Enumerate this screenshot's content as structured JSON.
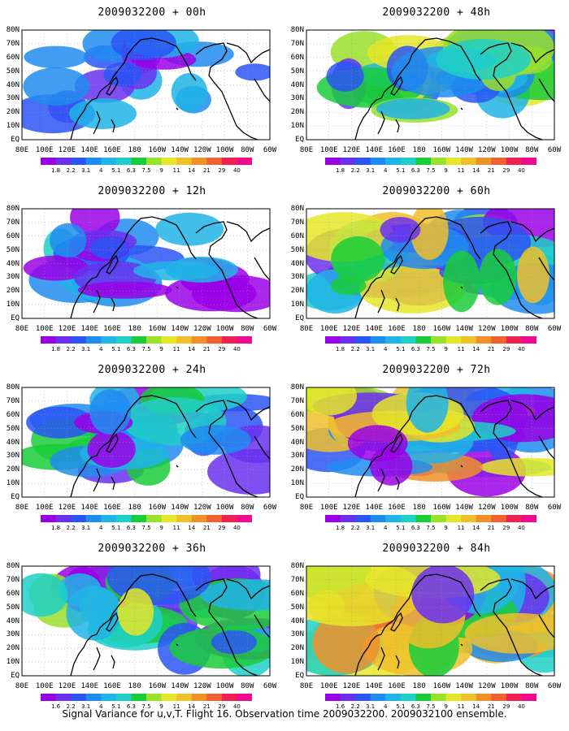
{
  "panels": [
    {
      "title": "2009032200 + 00h",
      "lead": "00h",
      "intensity": 0.15
    },
    {
      "title": "2009032200 + 48h",
      "lead": "48h",
      "intensity": 0.55
    },
    {
      "title": "2009032200 + 12h",
      "lead": "12h",
      "intensity": 0.28
    },
    {
      "title": "2009032200 + 60h",
      "lead": "60h",
      "intensity": 0.68
    },
    {
      "title": "2009032200 + 24h",
      "lead": "24h",
      "intensity": 0.4
    },
    {
      "title": "2009032200 + 72h",
      "lead": "72h",
      "intensity": 0.8
    },
    {
      "title": "2009032200 + 36h",
      "lead": "36h",
      "intensity": 0.52
    },
    {
      "title": "2009032200 + 84h",
      "lead": "84h",
      "intensity": 0.92
    }
  ],
  "lat_labels": [
    "80N",
    "70N",
    "60N",
    "50N",
    "40N",
    "30N",
    "20N",
    "10N",
    "EQ"
  ],
  "lon_labels": [
    "80E",
    "100E",
    "120E",
    "140E",
    "160E",
    "180",
    "160W",
    "140W",
    "120W",
    "100W",
    "80W",
    "60W"
  ],
  "colorbar": {
    "levels": [
      "1.8",
      "2.2",
      "3.1",
      "4",
      "5.1",
      "6.3",
      "7.5",
      "9",
      "11",
      "14",
      "21",
      "29",
      "40"
    ],
    "levels_bottom_row": [
      "1.6",
      "2.2",
      "3.1",
      "4",
      "5.1",
      "6.3",
      "7.5",
      "9",
      "11",
      "14",
      "21",
      "29",
      "40"
    ],
    "colors": [
      "#9a00e6",
      "#6a30f0",
      "#2a55f5",
      "#1f8cf0",
      "#20b4e8",
      "#1fd0c8",
      "#19cc3a",
      "#9ae12a",
      "#e6e628",
      "#f0c02a",
      "#f0902a",
      "#f06030",
      "#f02050",
      "#f00a90"
    ]
  },
  "caption": "Signal Variance for u,v,T. Flight 16. Observation time 2009032200. 2009032100 ensemble."
}
